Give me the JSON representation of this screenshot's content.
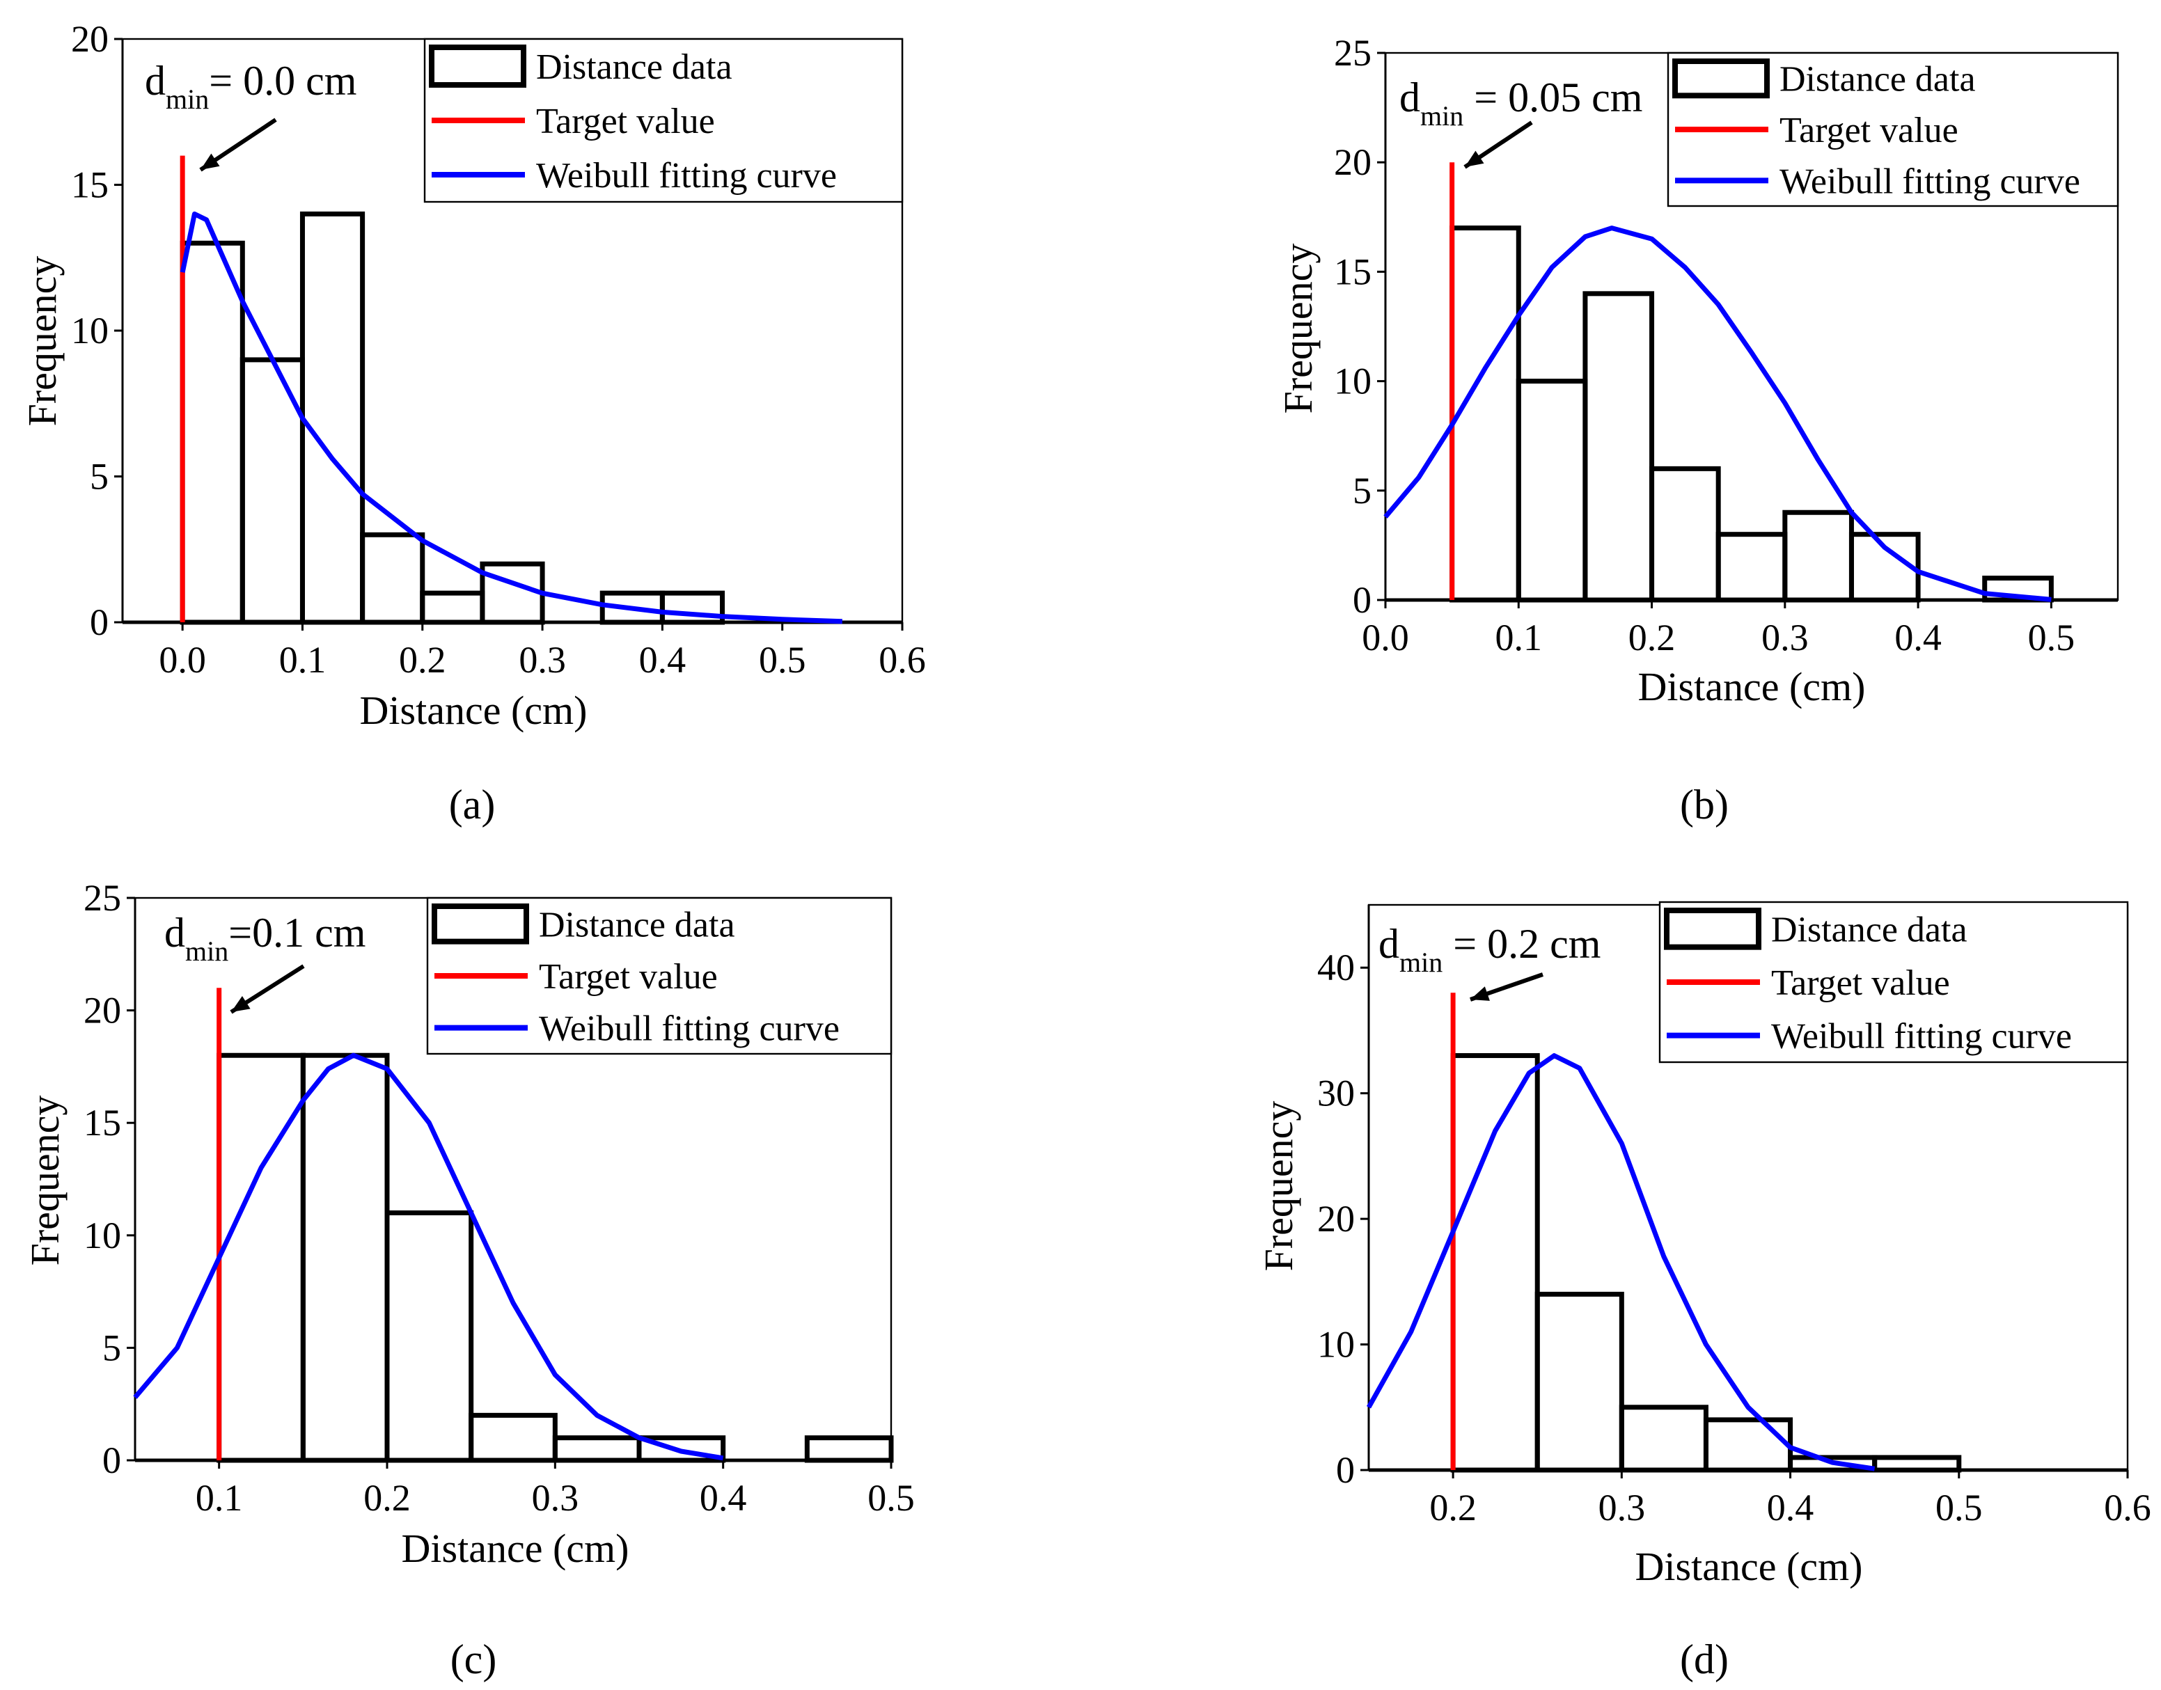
{
  "chart_data": [
    {
      "type": "bar",
      "caption": "(a)",
      "xlabel": "Distance (cm)",
      "ylabel": "Frequency",
      "xlim": [
        -0.05,
        0.6
      ],
      "ylim": [
        0,
        20
      ],
      "xticks": [
        "0.0",
        "0.1",
        "0.2",
        "0.3",
        "0.4",
        "0.5",
        "0.6"
      ],
      "xtick_values": [
        0,
        0.1,
        0.2,
        0.3,
        0.4,
        0.5,
        0.6
      ],
      "yticks": [
        0,
        5,
        10,
        15,
        20
      ],
      "bin_edges": [
        0,
        0.05,
        0.1,
        0.15,
        0.2,
        0.25,
        0.3,
        0.35,
        0.4,
        0.45
      ],
      "values": [
        13,
        9,
        14,
        3,
        1,
        2,
        0,
        1,
        1
      ],
      "target_value": {
        "x": 0.0,
        "height": 16
      },
      "fit_curve": [
        [
          0,
          12
        ],
        [
          0.01,
          14
        ],
        [
          0.02,
          13.8
        ],
        [
          0.05,
          11
        ],
        [
          0.075,
          9
        ],
        [
          0.1,
          7
        ],
        [
          0.125,
          5.6
        ],
        [
          0.15,
          4.4
        ],
        [
          0.2,
          2.8
        ],
        [
          0.25,
          1.7
        ],
        [
          0.3,
          1.0
        ],
        [
          0.35,
          0.6
        ],
        [
          0.4,
          0.35
        ],
        [
          0.45,
          0.2
        ],
        [
          0.5,
          0.1
        ],
        [
          0.55,
          0.03
        ]
      ],
      "annotation": {
        "main": "d",
        "sub": "min",
        "rest": "= 0.0 cm"
      },
      "legend": [
        "Distance data",
        "Target value",
        "Weibull fitting curve"
      ],
      "legend_position": "top-right"
    },
    {
      "type": "bar",
      "caption": "(b)",
      "xlabel": "Distance (cm)",
      "ylabel": "Frequency",
      "xlim": [
        0,
        0.55
      ],
      "ylim": [
        0,
        25
      ],
      "xticks": [
        "0.0",
        "0.1",
        "0.2",
        "0.3",
        "0.4",
        "0.5"
      ],
      "xtick_values": [
        0,
        0.1,
        0.2,
        0.3,
        0.4,
        0.5
      ],
      "yticks": [
        0,
        5,
        10,
        15,
        20,
        25
      ],
      "bin_edges": [
        0.05,
        0.1,
        0.15,
        0.2,
        0.25,
        0.3,
        0.35,
        0.4,
        0.45,
        0.5
      ],
      "values": [
        17,
        10,
        14,
        6,
        3,
        4,
        3,
        0,
        1
      ],
      "target_value": {
        "x": 0.05,
        "height": 20
      },
      "fit_curve": [
        [
          0,
          3.8
        ],
        [
          0.025,
          5.6
        ],
        [
          0.05,
          8
        ],
        [
          0.075,
          10.6
        ],
        [
          0.1,
          13
        ],
        [
          0.125,
          15.2
        ],
        [
          0.15,
          16.6
        ],
        [
          0.17,
          17
        ],
        [
          0.2,
          16.5
        ],
        [
          0.225,
          15.2
        ],
        [
          0.25,
          13.5
        ],
        [
          0.275,
          11.3
        ],
        [
          0.3,
          9
        ],
        [
          0.325,
          6.4
        ],
        [
          0.35,
          4
        ],
        [
          0.375,
          2.4
        ],
        [
          0.4,
          1.3
        ],
        [
          0.45,
          0.3
        ],
        [
          0.5,
          0.02
        ]
      ],
      "annotation": {
        "main": "d",
        "sub": "min",
        "rest": " = 0.05 cm"
      },
      "legend": [
        "Distance data",
        "Target value",
        "Weibull fitting curve"
      ],
      "legend_position": "top-right"
    },
    {
      "type": "bar",
      "caption": "(c)",
      "xlabel": "Distance (cm)",
      "ylabel": "Frequency",
      "xlim": [
        0.05,
        0.5
      ],
      "ylim": [
        0,
        25
      ],
      "xticks": [
        "0.1",
        "0.2",
        "0.3",
        "0.4",
        "0.5"
      ],
      "xtick_values": [
        0.1,
        0.2,
        0.3,
        0.4,
        0.5
      ],
      "yticks": [
        0,
        5,
        10,
        15,
        20,
        25
      ],
      "bin_edges": [
        0.1,
        0.15,
        0.2,
        0.25,
        0.3,
        0.35,
        0.4,
        0.45,
        0.5
      ],
      "values": [
        18,
        18,
        11,
        2,
        1,
        1,
        0,
        1
      ],
      "target_value": {
        "x": 0.1,
        "height": 21
      },
      "fit_curve": [
        [
          0.05,
          2.8
        ],
        [
          0.075,
          5
        ],
        [
          0.1,
          9
        ],
        [
          0.125,
          13
        ],
        [
          0.15,
          16
        ],
        [
          0.165,
          17.4
        ],
        [
          0.18,
          18
        ],
        [
          0.2,
          17.4
        ],
        [
          0.225,
          15
        ],
        [
          0.25,
          11
        ],
        [
          0.275,
          7
        ],
        [
          0.3,
          3.8
        ],
        [
          0.325,
          2
        ],
        [
          0.35,
          1
        ],
        [
          0.375,
          0.4
        ],
        [
          0.4,
          0.1
        ]
      ],
      "annotation": {
        "main": "d",
        "sub": "min",
        "rest": "=0.1 cm"
      },
      "legend": [
        "Distance data",
        "Target value",
        "Weibull fitting curve"
      ],
      "legend_position": "top-right"
    },
    {
      "type": "bar",
      "caption": "(d)",
      "xlabel": "Distance (cm)",
      "ylabel": "Frequency",
      "xlim": [
        0.15,
        0.6
      ],
      "ylim": [
        0,
        45
      ],
      "xticks": [
        "0.2",
        "0.3",
        "0.4",
        "0.5",
        "0.6"
      ],
      "xtick_values": [
        0.2,
        0.3,
        0.4,
        0.5,
        0.6
      ],
      "yticks": [
        0,
        10,
        20,
        30,
        40
      ],
      "bin_edges": [
        0.2,
        0.25,
        0.3,
        0.35,
        0.4,
        0.45,
        0.5
      ],
      "values": [
        33,
        14,
        5,
        4,
        1,
        1
      ],
      "target_value": {
        "x": 0.2,
        "height": 38
      },
      "fit_curve": [
        [
          0.15,
          5
        ],
        [
          0.175,
          11
        ],
        [
          0.2,
          19
        ],
        [
          0.225,
          27
        ],
        [
          0.245,
          31.6
        ],
        [
          0.26,
          33
        ],
        [
          0.275,
          32
        ],
        [
          0.3,
          26
        ],
        [
          0.325,
          17
        ],
        [
          0.35,
          10
        ],
        [
          0.375,
          5
        ],
        [
          0.4,
          1.8
        ],
        [
          0.425,
          0.6
        ],
        [
          0.45,
          0.1
        ]
      ],
      "annotation": {
        "main": "d",
        "sub": "min",
        "rest": " = 0.2 cm"
      },
      "legend": [
        "Distance data",
        "Target value",
        "Weibull fitting curve"
      ],
      "legend_position": "top-right"
    }
  ],
  "colors": {
    "bars": "#000000",
    "target": "#ff0000",
    "curve": "#0000ff"
  }
}
